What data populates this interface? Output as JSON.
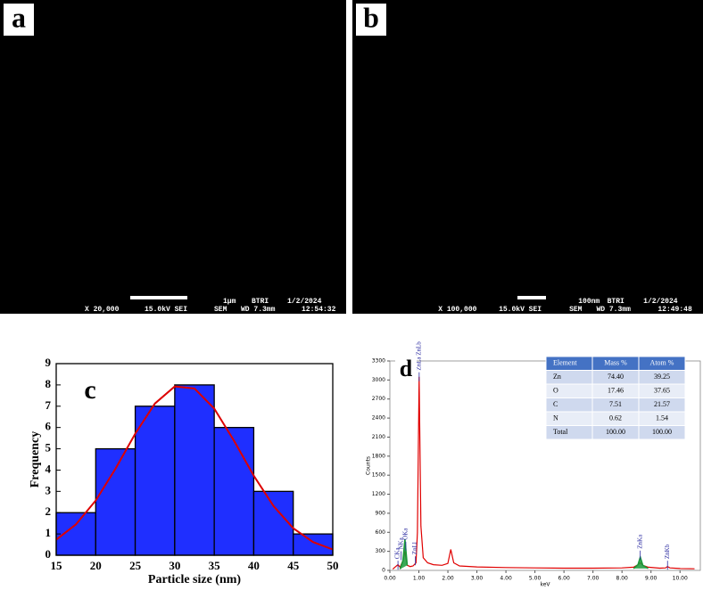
{
  "images": [
    {
      "label": "a",
      "scale_bar": "1μm",
      "lab": "BTRI",
      "date": "1/2/2024",
      "magnification": "X 20,000",
      "voltage": "15.0kV SEI",
      "mode": "SEM",
      "working_distance": "WD 7.3mm",
      "time": "12:54:32"
    },
    {
      "label": "b",
      "scale_bar": "100nm",
      "lab": "BTRI",
      "date": "1/2/2024",
      "magnification": "X 100,000",
      "voltage": "15.0kV SEI",
      "mode": "SEM",
      "working_distance": "WD 7.3mm",
      "time": "12:49:48"
    }
  ],
  "chart_data": [
    {
      "type": "histogram",
      "label": "c",
      "xlabel": "Particle size (nm)",
      "ylabel": "Frequency",
      "bins": [
        15,
        20,
        25,
        30,
        35,
        40,
        45,
        50
      ],
      "values": [
        2,
        5,
        7,
        8,
        6,
        3,
        1
      ],
      "color": "#1f2fff",
      "xlim": [
        15,
        50
      ],
      "xticks": [
        15,
        20,
        25,
        30,
        35,
        40,
        45,
        50
      ],
      "ylim": [
        0,
        9
      ],
      "yticks": [
        0,
        1,
        2,
        3,
        4,
        5,
        6,
        7,
        8,
        9
      ],
      "fit": {
        "color": "#dd0000",
        "x": [
          15,
          17.5,
          20,
          22.5,
          25,
          27.5,
          30,
          32.5,
          35,
          37.5,
          40,
          42.5,
          45,
          47.5,
          50
        ],
        "values": [
          0.73,
          1.45,
          2.57,
          4.06,
          5.71,
          7.13,
          7.93,
          7.83,
          6.89,
          5.38,
          3.74,
          2.31,
          1.27,
          0.62,
          0.27
        ]
      }
    },
    {
      "type": "line",
      "label": "d",
      "xlabel": "keV",
      "ylabel": "Counts",
      "x": [
        0.1,
        0.2,
        0.28,
        0.35,
        0.45,
        0.52,
        0.6,
        0.7,
        0.8,
        0.9,
        0.95,
        1.01,
        1.07,
        1.15,
        1.3,
        1.5,
        1.8,
        2.0,
        2.1,
        2.2,
        2.4,
        3,
        4,
        5,
        6,
        7,
        8,
        8.4,
        8.55,
        8.63,
        8.72,
        8.9,
        9.3,
        9.5,
        9.57,
        9.65,
        10,
        10.5
      ],
      "series": [
        {
          "color": "#e00000",
          "values": [
            20,
            60,
            90,
            50,
            150,
            300,
            80,
            60,
            70,
            120,
            600,
            3050,
            700,
            200,
            120,
            90,
            80,
            110,
            330,
            120,
            70,
            55,
            45,
            40,
            35,
            35,
            40,
            50,
            90,
            120,
            80,
            50,
            35,
            40,
            60,
            40,
            30,
            25
          ]
        },
        {
          "color": "#1a9a3a",
          "values": [
            null,
            null,
            null,
            20,
            150,
            490,
            80,
            null,
            null,
            null,
            null,
            null,
            null,
            null,
            null,
            null,
            null,
            null,
            null,
            null,
            null,
            null,
            null,
            null,
            null,
            null,
            null,
            30,
            90,
            210,
            80,
            30,
            null,
            null,
            null,
            null,
            null,
            null
          ]
        }
      ],
      "xlim": [
        0,
        10.7
      ],
      "xticks": [
        {
          "value": 0,
          "label": "0.00"
        },
        {
          "value": 1,
          "label": "1.00"
        },
        {
          "value": 2,
          "label": "2.00"
        },
        {
          "value": 3,
          "label": "3.00"
        },
        {
          "value": 4,
          "label": "4.00"
        },
        {
          "value": 5,
          "label": "5.00"
        },
        {
          "value": 6,
          "label": "6.00"
        },
        {
          "value": 7,
          "label": "7.00"
        },
        {
          "value": 8,
          "label": "8.00"
        },
        {
          "value": 9,
          "label": "9.00"
        },
        {
          "value": 10,
          "label": "10.00"
        }
      ],
      "ylim": [
        0,
        3300
      ],
      "yticks": [
        0,
        300,
        600,
        900,
        1200,
        1500,
        1800,
        2100,
        2400,
        2700,
        3000,
        3300
      ],
      "annotations": [
        {
          "text": "CKa",
          "x": 0.28,
          "y": 180
        },
        {
          "text": "NKa",
          "x": 0.39,
          "y": 330
        },
        {
          "text": "OKa",
          "x": 0.55,
          "y": 480
        },
        {
          "text": "ZnLl",
          "x": 0.88,
          "y": 250
        },
        {
          "text": "ZnLa ZnLb",
          "x": 1.01,
          "y": 3150
        },
        {
          "text": "ZnKa",
          "x": 8.63,
          "y": 340
        },
        {
          "text": "ZnKb",
          "x": 9.57,
          "y": 180
        }
      ],
      "table": {
        "header": [
          "Element",
          "Mass %",
          "Atom %"
        ],
        "rows": [
          [
            "Zn",
            "74.40",
            "39.25"
          ],
          [
            "O",
            "17.46",
            "37.65"
          ],
          [
            "C",
            "7.51",
            "21.57"
          ],
          [
            "N",
            "0.62",
            "1.54"
          ],
          [
            "Total",
            "100.00",
            "100.00"
          ]
        ]
      }
    }
  ]
}
